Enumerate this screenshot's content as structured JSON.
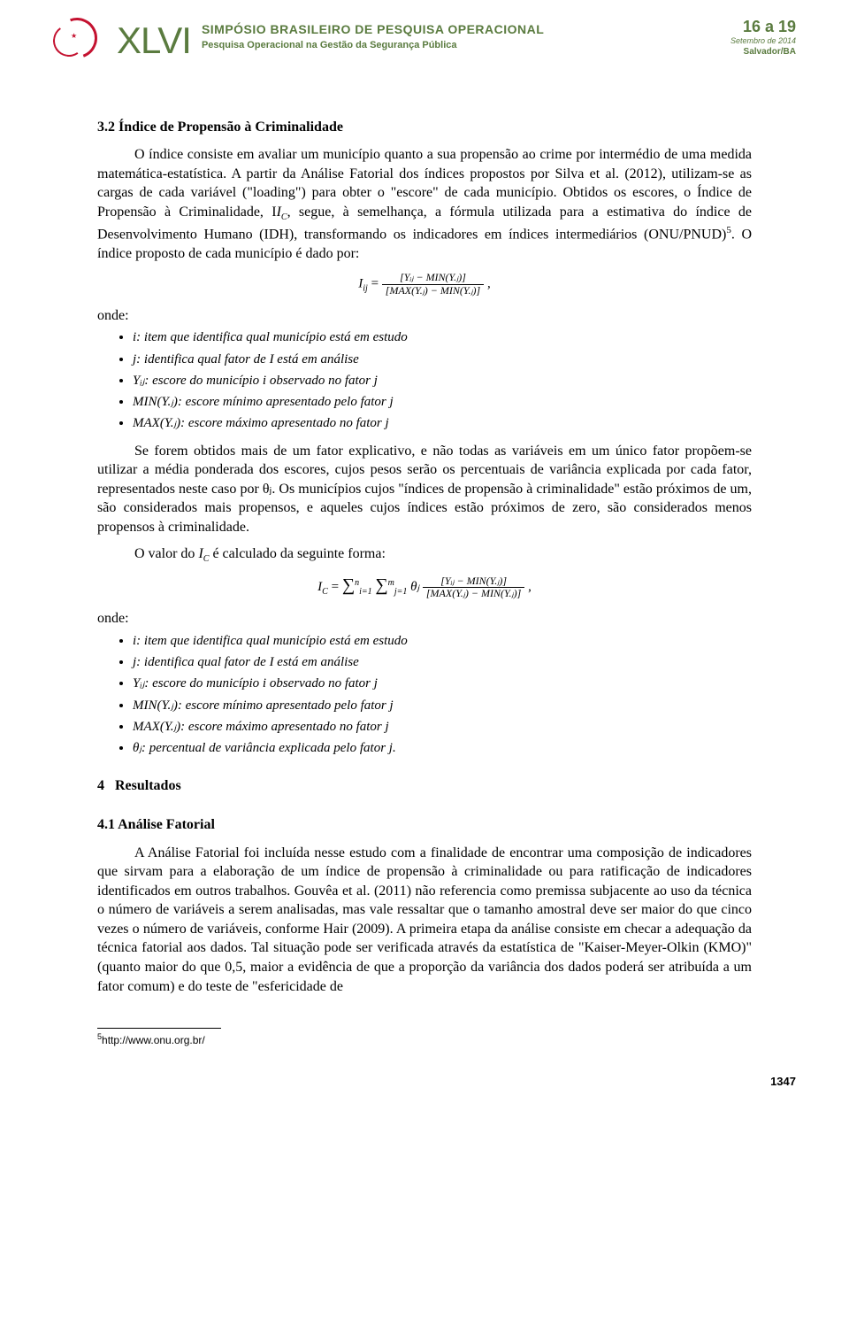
{
  "header": {
    "roman": "XLVI",
    "title_line1": "SIMPÓSIO BRASILEIRO DE PESQUISA OPERACIONAL",
    "title_line2": "Pesquisa Operacional na Gestão da Segurança Pública",
    "dates": "16 a 19",
    "dates_sub": "Setembro de 2014",
    "city": "Salvador/BA"
  },
  "section32_title": "3.2 Índice de Propensão à Criminalidade",
  "p1": "O índice consiste em avaliar um município quanto a sua propensão ao crime por intermédio de uma medida matemática-estatística. A partir da Análise Fatorial dos índices propostos por Silva et al. (2012), utilizam-se as cargas de cada variável (\"loading\") para obter o \"escore\" de cada município. Obtidos os escores, o Índice de Propensão à Criminalidade, I",
  "p1_cont": ", segue, à semelhança, a fórmula utilizada para a estimativa do índice de Desenvolvimento Humano (IDH), transformando os indicadores em índices intermediários (ONU/PNUD)",
  "p1_end": ". O índice proposto de cada município é dado por:",
  "eq1_lhs": "I",
  "eq1_sub": "ij",
  "eq1_num": "[Yᵢⱼ − MIN(Y.ⱼ)]",
  "eq1_den": "[MAX(Y.ⱼ) − MIN(Y.ⱼ)]",
  "onde": "onde:",
  "defs1": [
    "i: item que identifica qual município está em estudo",
    "j: identifica qual fator de I está em análise",
    "Yᵢⱼ: escore do município i observado no fator j",
    "MIN(Y.ⱼ): escore mínimo apresentado pelo fator j",
    "MAX(Y.ⱼ): escore máximo apresentado no fator j"
  ],
  "p2": "Se forem obtidos mais de um fator explicativo, e não todas as variáveis em um único fator propõem-se utilizar a média ponderada dos escores, cujos pesos serão os percentuais de variância explicada por cada fator, representados neste caso por θⱼ. Os municípios cujos \"índices de propensão à criminalidade\" estão próximos de um, são considerados mais propensos, e aqueles cujos índices estão próximos de zero, são considerados menos propensos à criminalidade.",
  "p3_a": "O valor do ",
  "p3_b": " é calculado da seguinte forma:",
  "eq2_lhs": "I",
  "eq2_lhs_sub": "C",
  "eq2_sum1_top": "n",
  "eq2_sum1_bot": "i=1",
  "eq2_sum2_top": "m",
  "eq2_sum2_bot": "j=1",
  "eq2_theta": "θⱼ",
  "defs2": [
    "i: item que identifica qual município está em estudo",
    "j: identifica qual fator de I está em análise",
    "Yᵢⱼ: escore do município i observado no fator j",
    "MIN(Y.ⱼ): escore mínimo apresentado pelo fator j",
    "MAX(Y.ⱼ): escore máximo apresentado no fator j",
    "θⱼ: percentual de variância explicada pelo fator j."
  ],
  "sec4": "4   Resultados",
  "sec41": "4.1 Análise Fatorial",
  "p4": "A Análise Fatorial foi incluída nesse estudo com a finalidade de encontrar uma composição de indicadores que sirvam para a elaboração de um índice de propensão à criminalidade ou para ratificação de indicadores identificados em outros trabalhos. Gouvêa et al. (2011) não referencia como premissa subjacente ao uso da técnica o número de variáveis a serem analisadas, mas vale ressaltar que o tamanho amostral deve ser maior do que cinco vezes o número de variáveis, conforme Hair (2009). A primeira etapa da análise consiste em checar a adequação da técnica fatorial aos dados. Tal situação pode ser verificada através da estatística de \"Kaiser-Meyer-Olkin (KMO)\" (quanto maior do que 0,5, maior a evidência de que a proporção da variância dos dados poderá ser atribuída a um fator comum) e do teste de \"esfericidade de",
  "footnote_mark": "5",
  "footnote_text": "http://www.onu.org.br/",
  "pagenum": "1347"
}
